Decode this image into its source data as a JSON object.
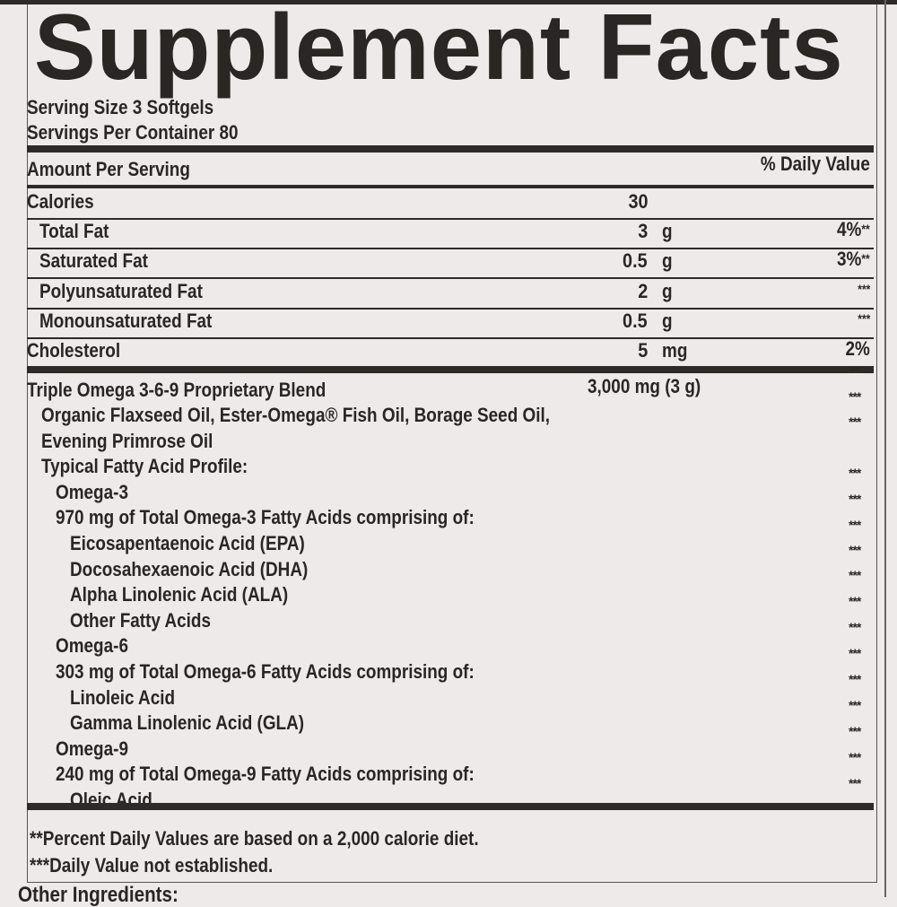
{
  "title": "Supplement Facts",
  "serving_size": "Serving Size 3 Softgels",
  "servings_per_container": "Servings Per Container 80",
  "header": {
    "amount_per_serving": "Amount Per Serving",
    "daily_value": "% Daily Value"
  },
  "nutrients": [
    {
      "name": "Calories",
      "amount": "30",
      "unit": "",
      "dv": "",
      "dv_mark": ""
    },
    {
      "name": "Total Fat",
      "amount": "3",
      "unit": "g",
      "dv": "4%",
      "dv_mark": "**"
    },
    {
      "name": "Saturated Fat",
      "amount": "0.5",
      "unit": "g",
      "dv": "3%",
      "dv_mark": "**"
    },
    {
      "name": "Polyunsaturated Fat",
      "amount": "2",
      "unit": "g",
      "dv": "",
      "dv_mark": "***"
    },
    {
      "name": "Monounsaturated Fat",
      "amount": "0.5",
      "unit": "g",
      "dv": "",
      "dv_mark": "***"
    },
    {
      "name": "Cholesterol",
      "amount": "5",
      "unit": "mg",
      "dv": "2%",
      "dv_mark": ""
    }
  ],
  "blend": {
    "name": "Triple Omega 3-6-9 Proprietary Blend",
    "amount": "3,000  mg (3 g)",
    "lines": [
      "Organic Flaxseed Oil, Ester-Omega® Fish Oil, Borage Seed Oil,",
      "Evening Primrose Oil",
      "Typical Fatty Acid Profile:",
      "Omega-3",
      "970 mg of Total Omega-3 Fatty Acids comprising of:",
      "Eicosapentaenoic Acid (EPA)",
      "Docosahexaenoic Acid (DHA)",
      "Alpha Linolenic Acid (ALA)",
      "Other Fatty Acids",
      "Omega-6",
      "303 mg of Total Omega-6 Fatty Acids comprising of:",
      "Linoleic Acid",
      "Gamma Linolenic Acid (GLA)",
      "Omega-9",
      "240 mg of Total Omega-9 Fatty Acids comprising of:",
      "Oleic Acid"
    ],
    "dv_marks": [
      "***",
      "***",
      "***",
      "***",
      "***",
      "***",
      "***",
      "***",
      "***",
      "***",
      "***",
      "***",
      "***",
      "***",
      "***",
      "***"
    ]
  },
  "footnotes": [
    "**Percent Daily Values are based on a 2,000 calorie diet.",
    "***Daily Value not established."
  ],
  "other_ingredients_label": "Other Ingredients:"
}
